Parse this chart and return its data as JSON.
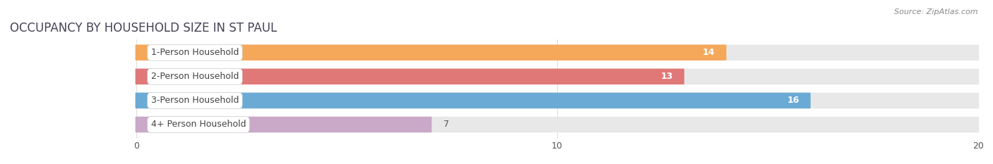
{
  "title": "OCCUPANCY BY HOUSEHOLD SIZE IN ST PAUL",
  "source": "Source: ZipAtlas.com",
  "categories": [
    "1-Person Household",
    "2-Person Household",
    "3-Person Household",
    "4+ Person Household"
  ],
  "values": [
    14,
    13,
    16,
    7
  ],
  "bar_colors": [
    "#F5A85A",
    "#E07878",
    "#6BAAD4",
    "#C9A8C8"
  ],
  "bar_bg_color": "#e8e8e8",
  "xlim": [
    -3,
    20
  ],
  "xmin": 0,
  "xmax": 20,
  "xticks": [
    0,
    10,
    20
  ],
  "label_fontsize": 9,
  "value_fontsize": 9,
  "title_fontsize": 12,
  "bar_height": 0.62,
  "bar_gap": 0.18,
  "background_color": "#ffffff",
  "title_color": "#444455",
  "source_color": "#888888"
}
